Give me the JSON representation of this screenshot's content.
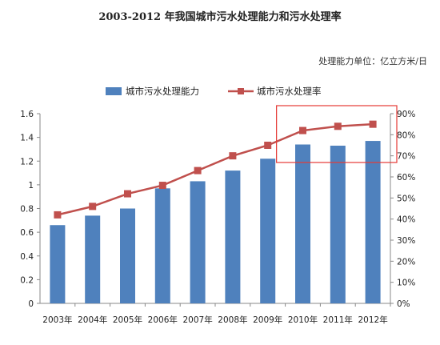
{
  "title": "2003-2012 年我国城市污水处理能力和污水处理率",
  "unit_note": "处理能力单位：亿立方米/日",
  "colors": {
    "bar": "#4F81BD",
    "line": "#C0504D",
    "highlight": "#E53935",
    "axis": "#888888"
  },
  "chart_data": {
    "type": "bar",
    "categories": [
      "2003年",
      "2004年",
      "2005年",
      "2006年",
      "2007年",
      "2008年",
      "2009年",
      "2010年",
      "2011年",
      "2012年"
    ],
    "series": [
      {
        "name": "城市污水处理能力",
        "type": "bar",
        "axis": "left",
        "values": [
          0.66,
          0.74,
          0.8,
          0.97,
          1.03,
          1.12,
          1.22,
          1.34,
          1.33,
          1.37
        ]
      },
      {
        "name": "城市污水处理率",
        "type": "line",
        "axis": "right",
        "values": [
          42,
          46,
          52,
          56,
          63,
          70,
          75,
          82,
          84,
          85
        ]
      }
    ],
    "yleft": {
      "lim": [
        0,
        1.6
      ],
      "ticks": [
        "0",
        "0.2",
        "0.4",
        "0.6",
        "0.8",
        "1",
        "1.2",
        "1.4",
        "1.6"
      ]
    },
    "yright": {
      "lim": [
        0,
        90
      ],
      "ticks": [
        "0%",
        "10%",
        "20%",
        "30%",
        "40%",
        "50%",
        "60%",
        "70%",
        "80%",
        "90%"
      ]
    },
    "legend": "top",
    "highlight_range": {
      "from": "2010年",
      "to": "2012年"
    }
  }
}
